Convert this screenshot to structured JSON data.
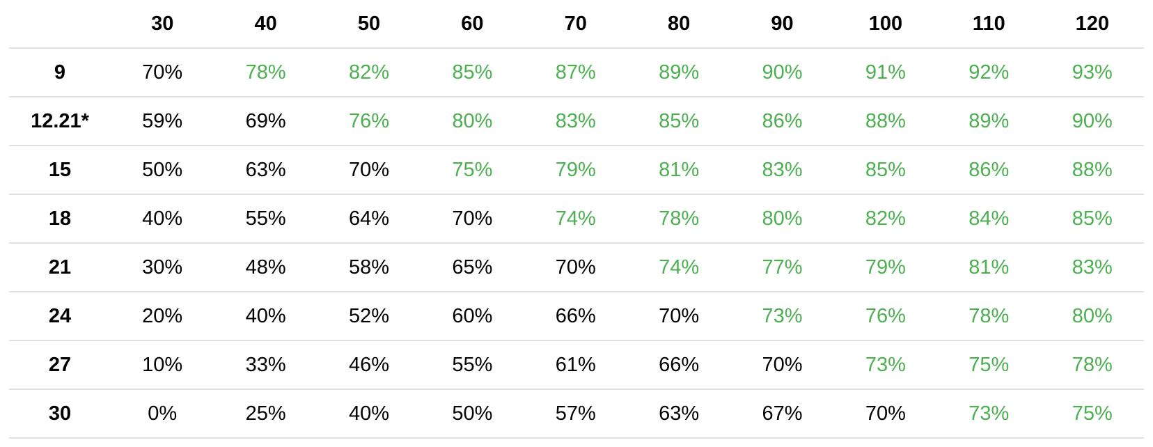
{
  "table": {
    "columns": [
      "30",
      "40",
      "50",
      "60",
      "70",
      "80",
      "90",
      "100",
      "110",
      "120"
    ],
    "rows": [
      {
        "label": "9",
        "cells": [
          {
            "text": "70%",
            "color": "#000000"
          },
          {
            "text": "78%",
            "color": "#4caf50"
          },
          {
            "text": "82%",
            "color": "#4caf50"
          },
          {
            "text": "85%",
            "color": "#4caf50"
          },
          {
            "text": "87%",
            "color": "#4caf50"
          },
          {
            "text": "89%",
            "color": "#4caf50"
          },
          {
            "text": "90%",
            "color": "#4caf50"
          },
          {
            "text": "91%",
            "color": "#4caf50"
          },
          {
            "text": "92%",
            "color": "#4caf50"
          },
          {
            "text": "93%",
            "color": "#4caf50"
          }
        ]
      },
      {
        "label": "12.21*",
        "cells": [
          {
            "text": "59%",
            "color": "#000000"
          },
          {
            "text": "69%",
            "color": "#000000"
          },
          {
            "text": "76%",
            "color": "#4caf50"
          },
          {
            "text": "80%",
            "color": "#4caf50"
          },
          {
            "text": "83%",
            "color": "#4caf50"
          },
          {
            "text": "85%",
            "color": "#4caf50"
          },
          {
            "text": "86%",
            "color": "#4caf50"
          },
          {
            "text": "88%",
            "color": "#4caf50"
          },
          {
            "text": "89%",
            "color": "#4caf50"
          },
          {
            "text": "90%",
            "color": "#4caf50"
          }
        ]
      },
      {
        "label": "15",
        "cells": [
          {
            "text": "50%",
            "color": "#000000"
          },
          {
            "text": "63%",
            "color": "#000000"
          },
          {
            "text": "70%",
            "color": "#000000"
          },
          {
            "text": "75%",
            "color": "#4caf50"
          },
          {
            "text": "79%",
            "color": "#4caf50"
          },
          {
            "text": "81%",
            "color": "#4caf50"
          },
          {
            "text": "83%",
            "color": "#4caf50"
          },
          {
            "text": "85%",
            "color": "#4caf50"
          },
          {
            "text": "86%",
            "color": "#4caf50"
          },
          {
            "text": "88%",
            "color": "#4caf50"
          }
        ]
      },
      {
        "label": "18",
        "cells": [
          {
            "text": "40%",
            "color": "#000000"
          },
          {
            "text": "55%",
            "color": "#000000"
          },
          {
            "text": "64%",
            "color": "#000000"
          },
          {
            "text": "70%",
            "color": "#000000"
          },
          {
            "text": "74%",
            "color": "#4caf50"
          },
          {
            "text": "78%",
            "color": "#4caf50"
          },
          {
            "text": "80%",
            "color": "#4caf50"
          },
          {
            "text": "82%",
            "color": "#4caf50"
          },
          {
            "text": "84%",
            "color": "#4caf50"
          },
          {
            "text": "85%",
            "color": "#4caf50"
          }
        ]
      },
      {
        "label": "21",
        "cells": [
          {
            "text": "30%",
            "color": "#000000"
          },
          {
            "text": "48%",
            "color": "#000000"
          },
          {
            "text": "58%",
            "color": "#000000"
          },
          {
            "text": "65%",
            "color": "#000000"
          },
          {
            "text": "70%",
            "color": "#000000"
          },
          {
            "text": "74%",
            "color": "#4caf50"
          },
          {
            "text": "77%",
            "color": "#4caf50"
          },
          {
            "text": "79%",
            "color": "#4caf50"
          },
          {
            "text": "81%",
            "color": "#4caf50"
          },
          {
            "text": "83%",
            "color": "#4caf50"
          }
        ]
      },
      {
        "label": "24",
        "cells": [
          {
            "text": "20%",
            "color": "#000000"
          },
          {
            "text": "40%",
            "color": "#000000"
          },
          {
            "text": "52%",
            "color": "#000000"
          },
          {
            "text": "60%",
            "color": "#000000"
          },
          {
            "text": "66%",
            "color": "#000000"
          },
          {
            "text": "70%",
            "color": "#000000"
          },
          {
            "text": "73%",
            "color": "#4caf50"
          },
          {
            "text": "76%",
            "color": "#4caf50"
          },
          {
            "text": "78%",
            "color": "#4caf50"
          },
          {
            "text": "80%",
            "color": "#4caf50"
          }
        ]
      },
      {
        "label": "27",
        "cells": [
          {
            "text": "10%",
            "color": "#000000"
          },
          {
            "text": "33%",
            "color": "#000000"
          },
          {
            "text": "46%",
            "color": "#000000"
          },
          {
            "text": "55%",
            "color": "#000000"
          },
          {
            "text": "61%",
            "color": "#000000"
          },
          {
            "text": "66%",
            "color": "#000000"
          },
          {
            "text": "70%",
            "color": "#000000"
          },
          {
            "text": "73%",
            "color": "#4caf50"
          },
          {
            "text": "75%",
            "color": "#4caf50"
          },
          {
            "text": "78%",
            "color": "#4caf50"
          }
        ]
      },
      {
        "label": "30",
        "cells": [
          {
            "text": "0%",
            "color": "#000000"
          },
          {
            "text": "25%",
            "color": "#000000"
          },
          {
            "text": "40%",
            "color": "#000000"
          },
          {
            "text": "50%",
            "color": "#000000"
          },
          {
            "text": "57%",
            "color": "#000000"
          },
          {
            "text": "63%",
            "color": "#000000"
          },
          {
            "text": "67%",
            "color": "#000000"
          },
          {
            "text": "70%",
            "color": "#000000"
          },
          {
            "text": "73%",
            "color": "#4caf50"
          },
          {
            "text": "75%",
            "color": "#4caf50"
          }
        ]
      }
    ]
  }
}
